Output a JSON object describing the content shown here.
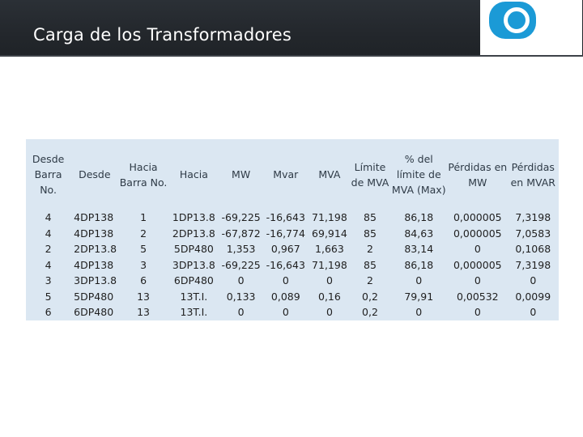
{
  "slide": {
    "title": "Carga de los Transformadores"
  },
  "table": {
    "headers": [
      "Desde Barra No.",
      "Desde",
      "Hacia Barra No.",
      "Hacia",
      "MW",
      "Mvar",
      "MVA",
      "Límite de MVA",
      "% del límite de MVA (Max)",
      "Pérdidas en MW",
      "Pérdidas en MVAR"
    ],
    "rows": [
      [
        "4",
        "4DP138",
        "1",
        "1DP13.8",
        "-69,225",
        "-16,643",
        "71,198",
        "85",
        "86,18",
        "0,000005",
        "7,3198"
      ],
      [
        "4",
        "4DP138",
        "2",
        "2DP13.8",
        "-67,872",
        "-16,774",
        "69,914",
        "85",
        "84,63",
        "0,000005",
        "7,0583"
      ],
      [
        "2",
        "2DP13.8",
        "5",
        "5DP480",
        "1,353",
        "0,967",
        "1,663",
        "2",
        "83,14",
        "0",
        "0,1068"
      ],
      [
        "4",
        "4DP138",
        "3",
        "3DP13.8",
        "-69,225",
        "-16,643",
        "71,198",
        "85",
        "86,18",
        "0,000005",
        "7,3198"
      ],
      [
        "3",
        "3DP13.8",
        "6",
        "6DP480",
        "0",
        "0",
        "0",
        "2",
        "0",
        "0",
        "0"
      ],
      [
        "5",
        "5DP480",
        "13",
        "13T.I.",
        "0,133",
        "0,089",
        "0,16",
        "0,2",
        "79,91",
        "0,00532",
        "0,0099"
      ],
      [
        "6",
        "6DP480",
        "13",
        "13T.I.",
        "0",
        "0",
        "0",
        "0,2",
        "0",
        "0",
        "0"
      ]
    ]
  },
  "colors": {
    "header_bg": "#23272c",
    "table_bg": "#dbe7f2",
    "logo_blue": "#1b9ad6"
  },
  "icons": {
    "logo": "brand-logo-icon"
  }
}
